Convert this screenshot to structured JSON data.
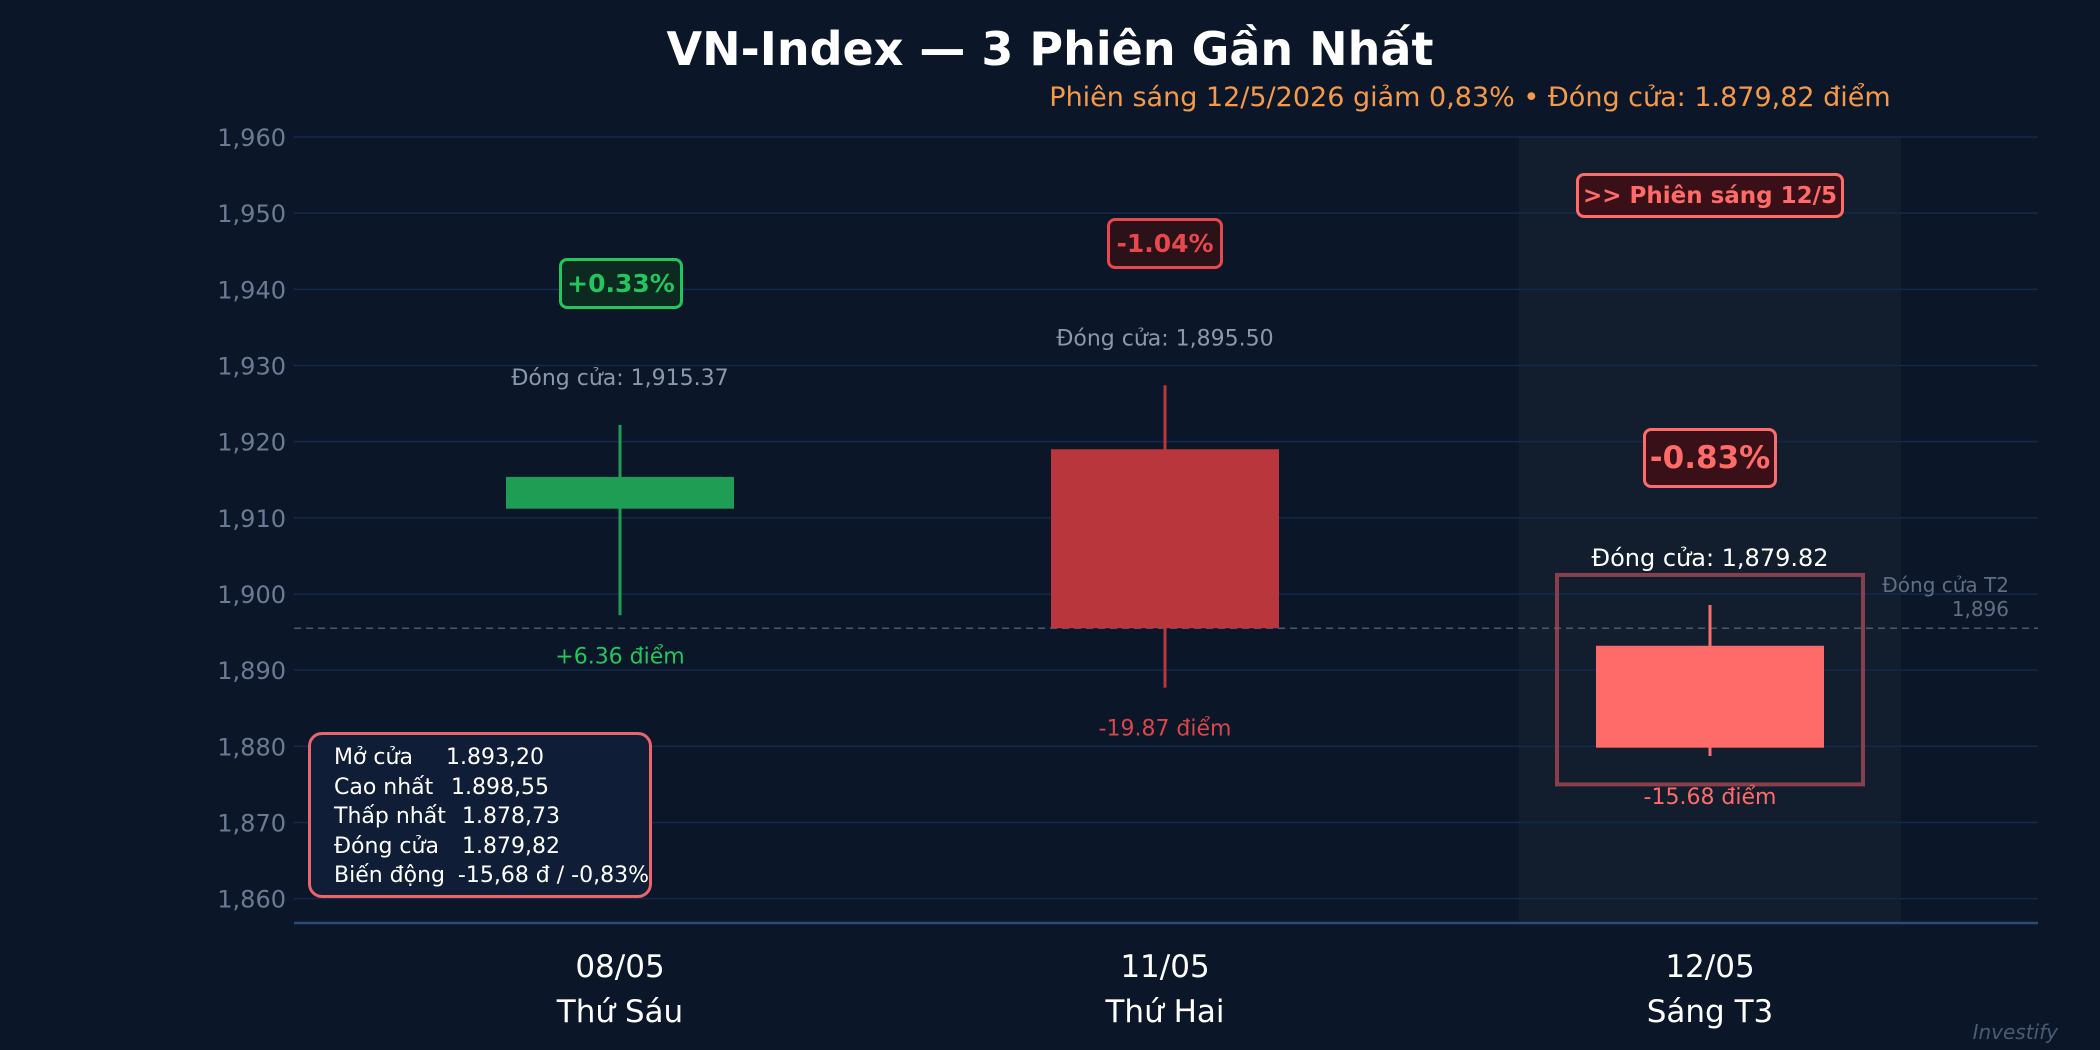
{
  "title": "VN-Index — 3 Phiên Gần Nhất",
  "subtitle": "Phiên sáng 12/5/2026 giảm 0,83%  •  Đóng cửa: 1.879,82 điểm",
  "watermark": "Investify",
  "colors": {
    "background": "#0b1628",
    "grid": "#15294a",
    "up": "#1f9d55",
    "down": "#b8363c",
    "down_highlight": "#ff6b68",
    "subtitle": "#f59a4b",
    "axis_text": "#6b7b93"
  },
  "chart_data": {
    "type": "candlestick",
    "title": "VN-Index — 3 Phiên Gần Nhất",
    "y_ticks": [
      1860,
      1870,
      1880,
      1890,
      1900,
      1910,
      1920,
      1930,
      1940,
      1950,
      1960
    ],
    "y_tick_labels": [
      "1,860",
      "1,870",
      "1,880",
      "1,890",
      "1,900",
      "1,910",
      "1,920",
      "1,930",
      "1,940",
      "1,950",
      "1,960"
    ],
    "ylim": [
      1856.8,
      1960
    ],
    "grid": true,
    "reference_line": {
      "value": 1895.5,
      "label_1": "Đóng cửa T2",
      "label_2": "1,896"
    },
    "candles": [
      {
        "date": "08/05",
        "day": "Thứ Sáu",
        "open": 1911.2,
        "high": 1922.2,
        "low": 1897.2,
        "close": 1915.37,
        "close_label": "Đóng cửa: 1,915.37",
        "change_label": "+6.36 điểm",
        "pct_label": "+0.33%",
        "direction": "up"
      },
      {
        "date": "11/05",
        "day": "Thứ Hai",
        "open": 1919.0,
        "high": 1927.4,
        "low": 1887.7,
        "close": 1895.5,
        "close_label": "Đóng cửa: 1,895.50",
        "change_label": "-19.87 điểm",
        "pct_label": "-1.04%",
        "direction": "down"
      },
      {
        "date": "12/05",
        "day": "Sáng T3",
        "open": 1893.2,
        "high": 1898.55,
        "low": 1878.73,
        "close": 1879.82,
        "close_label": "Đóng cửa: 1,879.82",
        "change_label": "-15.68 điểm",
        "pct_label": "-0.83%",
        "direction": "down",
        "highlight": true,
        "tag": ">> Phiên sáng 12/5"
      }
    ]
  },
  "stats": [
    {
      "label": "Mở cửa",
      "value": "1.893,20"
    },
    {
      "label": "Cao nhất",
      "value": "1.898,55"
    },
    {
      "label": "Thấp nhất",
      "value": "1.878,73"
    },
    {
      "label": "Đóng cửa",
      "value": "1.879,82"
    },
    {
      "label": "Biến động",
      "value": "-15,68 đ / -0,83%"
    }
  ]
}
